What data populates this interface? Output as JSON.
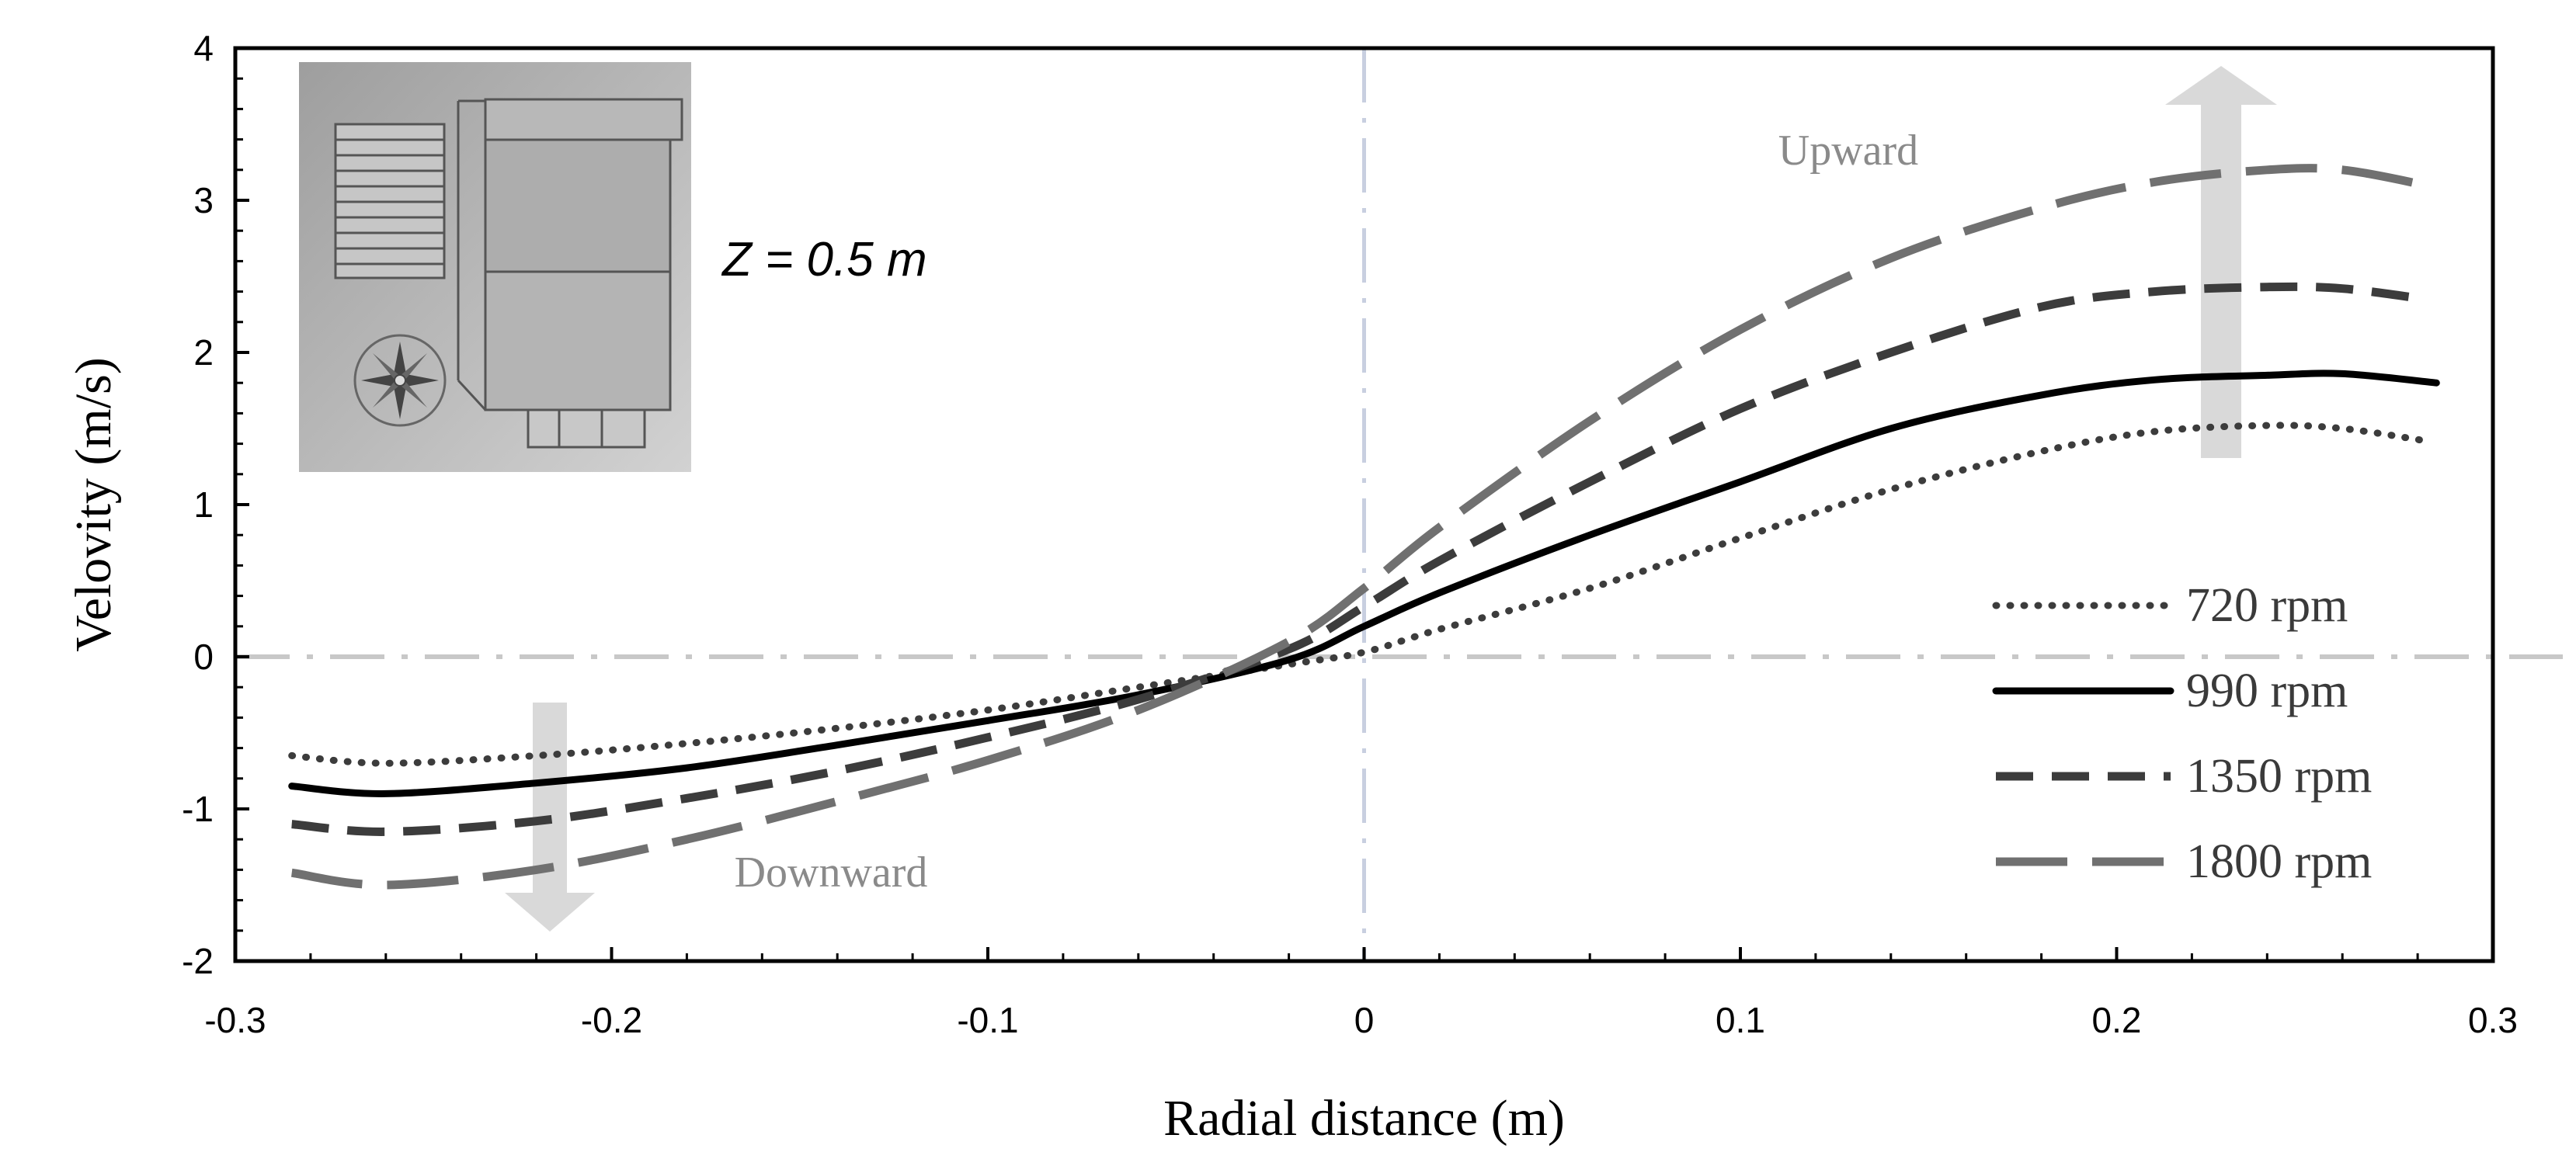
{
  "chart_data": {
    "type": "line",
    "title": "",
    "xlabel": "Radial distance (m)",
    "ylabel": "Velovity (m/s)",
    "xlim": [
      -0.3,
      0.3
    ],
    "ylim": [
      -2,
      4
    ],
    "xticks": [
      -0.3,
      -0.2,
      -0.1,
      0,
      0.1,
      0.2,
      0.3
    ],
    "xtick_labels": [
      "-0.3",
      "-0.2",
      "-0.1",
      "0",
      "0.1",
      "0.2",
      "0.3"
    ],
    "yticks": [
      -2,
      -1,
      0,
      1,
      2,
      3,
      4
    ],
    "ytick_labels": [
      "-2",
      "-1",
      "0",
      "1",
      "2",
      "3",
      "4"
    ],
    "grid": false,
    "legend_position": "right",
    "inset_label": "Z = 0.5 m",
    "annotations": {
      "upward": "Upward",
      "downward": "Downward"
    },
    "reference_lines": {
      "x0": 0,
      "y0": 0
    },
    "series": [
      {
        "name": "720 rpm",
        "style": "dotted",
        "color": "#3c3c3c",
        "x": [
          -0.285,
          -0.26,
          -0.22,
          -0.18,
          -0.14,
          -0.1,
          -0.06,
          -0.02,
          0,
          0.02,
          0.06,
          0.1,
          0.14,
          0.18,
          0.21,
          0.24,
          0.26,
          0.282
        ],
        "y": [
          -0.65,
          -0.7,
          -0.65,
          -0.57,
          -0.47,
          -0.35,
          -0.2,
          -0.05,
          0.03,
          0.18,
          0.45,
          0.78,
          1.1,
          1.35,
          1.48,
          1.52,
          1.5,
          1.42
        ]
      },
      {
        "name": "990 rpm",
        "style": "solid",
        "color": "#000000",
        "x": [
          -0.285,
          -0.26,
          -0.22,
          -0.18,
          -0.14,
          -0.1,
          -0.06,
          -0.02,
          0,
          0.02,
          0.06,
          0.1,
          0.14,
          0.18,
          0.21,
          0.24,
          0.26,
          0.285
        ],
        "y": [
          -0.85,
          -0.9,
          -0.83,
          -0.73,
          -0.58,
          -0.42,
          -0.25,
          -0.02,
          0.2,
          0.42,
          0.8,
          1.15,
          1.5,
          1.72,
          1.82,
          1.85,
          1.86,
          1.8
        ]
      },
      {
        "name": "1350 rpm",
        "style": "dashed",
        "color": "#3c3c3c",
        "x": [
          -0.285,
          -0.26,
          -0.22,
          -0.18,
          -0.14,
          -0.1,
          -0.06,
          -0.02,
          0,
          0.02,
          0.06,
          0.1,
          0.14,
          0.18,
          0.21,
          0.24,
          0.26,
          0.282
        ],
        "y": [
          -1.1,
          -1.15,
          -1.08,
          -0.93,
          -0.75,
          -0.53,
          -0.28,
          0.05,
          0.33,
          0.63,
          1.15,
          1.63,
          2.0,
          2.3,
          2.4,
          2.43,
          2.42,
          2.35
        ]
      },
      {
        "name": "1800 rpm",
        "style": "long-dashed",
        "color": "#707070",
        "x": [
          -0.285,
          -0.26,
          -0.22,
          -0.18,
          -0.14,
          -0.1,
          -0.06,
          -0.02,
          0,
          0.02,
          0.06,
          0.1,
          0.14,
          0.18,
          0.21,
          0.24,
          0.26,
          0.282
        ],
        "y": [
          -1.42,
          -1.5,
          -1.4,
          -1.2,
          -0.95,
          -0.68,
          -0.35,
          0.1,
          0.45,
          0.85,
          1.55,
          2.15,
          2.62,
          2.95,
          3.12,
          3.2,
          3.2,
          3.1
        ]
      }
    ]
  }
}
